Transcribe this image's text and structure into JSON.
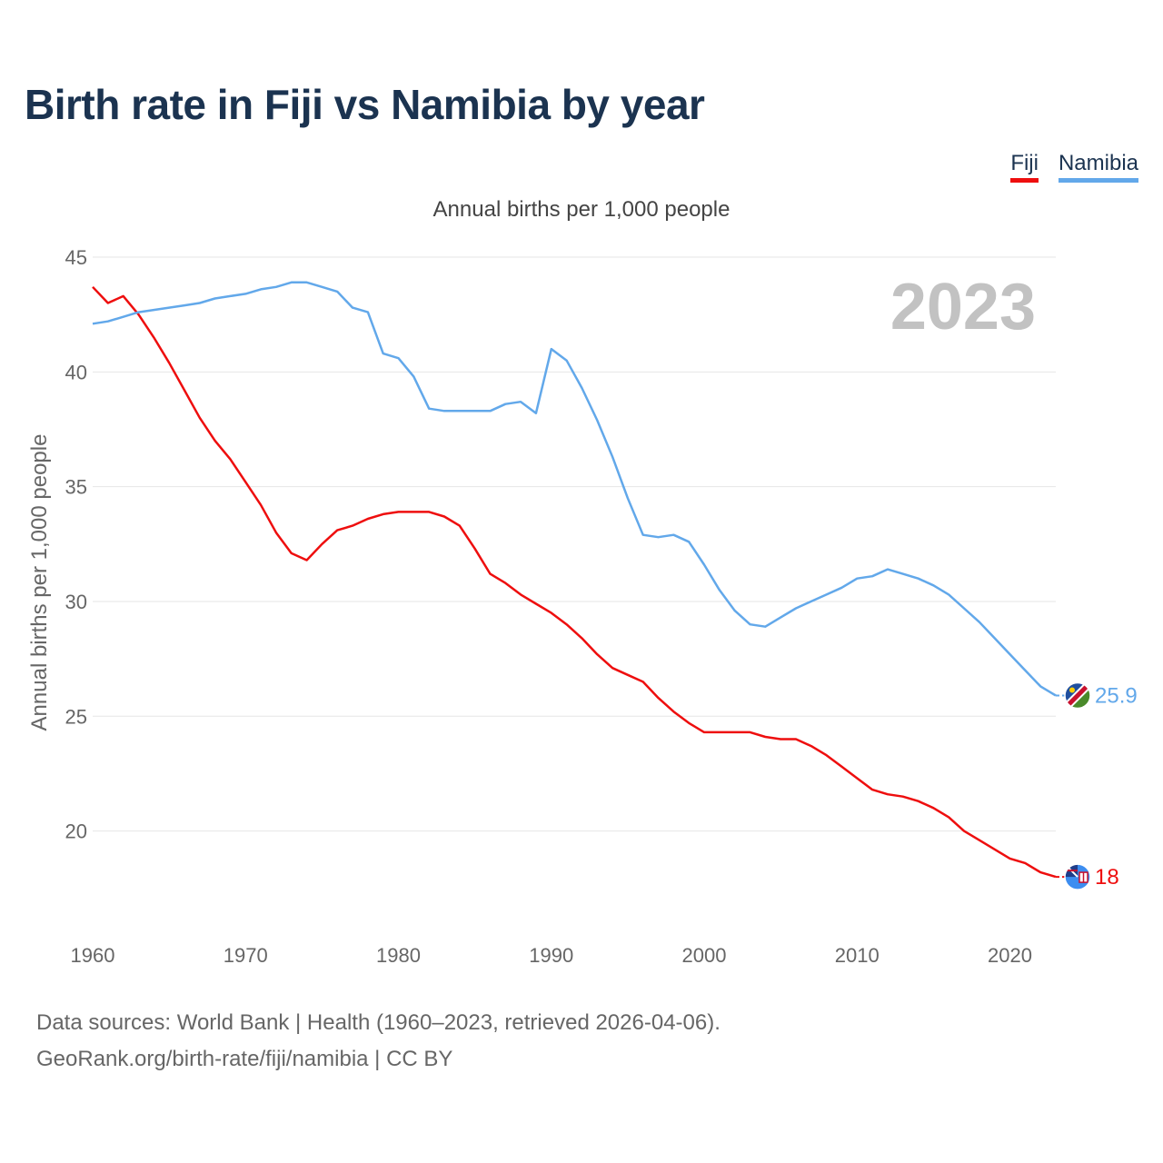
{
  "title": "Birth rate in Fiji vs Namibia by year",
  "subtitle": "Annual births per 1,000 people",
  "year_watermark": "2023",
  "footer": {
    "line1": "Data sources: World Bank | Health (1960–2023, retrieved 2026-04-06).",
    "line2": "GeoRank.org/birth-rate/fiji/namibia | CC BY"
  },
  "legend": [
    {
      "label": "Fiji",
      "color": "#ee0e0e"
    },
    {
      "label": "Namibia",
      "color": "#62a8ea"
    }
  ],
  "chart_data": {
    "type": "line",
    "title": "Birth rate in Fiji vs Namibia by year",
    "ylabel": "Annual births per 1,000 people",
    "xlabel": "",
    "xlim": [
      1960,
      2023
    ],
    "ylim": [
      16.5,
      45
    ],
    "x_ticks": [
      1960,
      1970,
      1980,
      1990,
      2000,
      2010,
      2020
    ],
    "y_ticks": [
      20,
      25,
      30,
      35,
      40,
      45
    ],
    "grid": true,
    "legend_position": "top-right",
    "x": [
      1960,
      1961,
      1962,
      1963,
      1964,
      1965,
      1966,
      1967,
      1968,
      1969,
      1970,
      1971,
      1972,
      1973,
      1974,
      1975,
      1976,
      1977,
      1978,
      1979,
      1980,
      1981,
      1982,
      1983,
      1984,
      1985,
      1986,
      1987,
      1988,
      1989,
      1990,
      1991,
      1992,
      1993,
      1994,
      1995,
      1996,
      1997,
      1998,
      1999,
      2000,
      2001,
      2002,
      2003,
      2004,
      2005,
      2006,
      2007,
      2008,
      2009,
      2010,
      2011,
      2012,
      2013,
      2014,
      2015,
      2016,
      2017,
      2018,
      2019,
      2020,
      2021,
      2022,
      2023
    ],
    "series": [
      {
        "name": "Fiji",
        "color": "#ee0e0e",
        "end_label": "18",
        "values": [
          43.7,
          43.0,
          43.3,
          42.5,
          41.5,
          40.4,
          39.2,
          38.0,
          37.0,
          36.2,
          35.2,
          34.2,
          33.0,
          32.1,
          31.8,
          32.5,
          33.1,
          33.3,
          33.6,
          33.8,
          33.9,
          33.9,
          33.9,
          33.7,
          33.3,
          32.3,
          31.2,
          30.8,
          30.3,
          29.9,
          29.5,
          29.0,
          28.4,
          27.7,
          27.1,
          26.8,
          26.5,
          25.8,
          25.2,
          24.7,
          24.3,
          24.3,
          24.3,
          24.3,
          24.1,
          24.0,
          24.0,
          23.7,
          23.3,
          22.8,
          22.3,
          21.8,
          21.6,
          21.5,
          21.3,
          21.0,
          20.6,
          20.0,
          19.6,
          19.2,
          18.8,
          18.6,
          18.2,
          18.0
        ]
      },
      {
        "name": "Namibia",
        "color": "#62a8ea",
        "end_label": "25.9",
        "values": [
          42.1,
          42.2,
          42.4,
          42.6,
          42.7,
          42.8,
          42.9,
          43.0,
          43.2,
          43.3,
          43.4,
          43.6,
          43.7,
          43.9,
          43.9,
          43.7,
          43.5,
          42.8,
          42.6,
          40.8,
          40.6,
          39.8,
          38.4,
          38.3,
          38.3,
          38.3,
          38.3,
          38.6,
          38.7,
          38.2,
          41.0,
          40.5,
          39.3,
          37.9,
          36.3,
          34.5,
          32.9,
          32.8,
          32.9,
          32.6,
          31.6,
          30.5,
          29.6,
          29.0,
          28.9,
          29.3,
          29.7,
          30.0,
          30.3,
          30.6,
          31.0,
          31.1,
          31.4,
          31.2,
          31.0,
          30.7,
          30.3,
          29.7,
          29.1,
          28.4,
          27.7,
          27.0,
          26.3,
          25.9
        ]
      }
    ]
  }
}
